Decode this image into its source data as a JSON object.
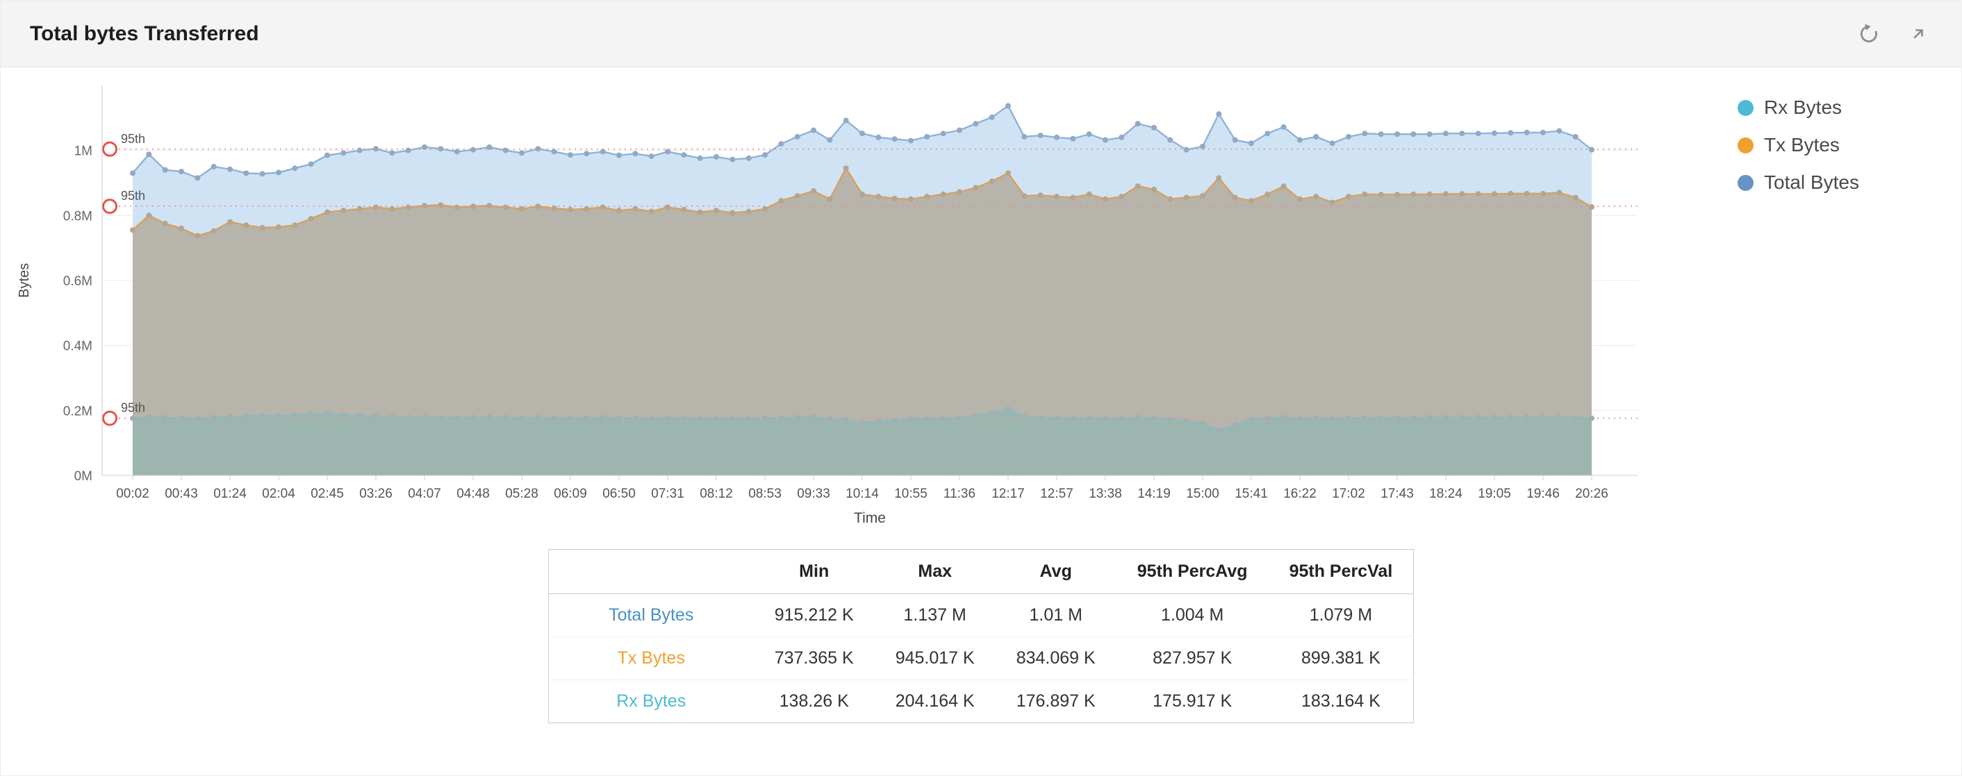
{
  "header": {
    "title": "Total bytes Transferred"
  },
  "toolbar": {
    "icons": [
      "history-icon",
      "expand-icon"
    ]
  },
  "legend": [
    {
      "label": "Rx Bytes",
      "color": "#4db9d6"
    },
    {
      "label": "Tx Bytes",
      "color": "#f0a02f"
    },
    {
      "label": "Total Bytes",
      "color": "#6593c6"
    }
  ],
  "chart_data": {
    "type": "area",
    "title": "Total bytes Transferred",
    "xlabel": "Time",
    "ylabel": "Bytes",
    "unit": "K bytes",
    "ylim_k": [
      0,
      1200
    ],
    "grid": "horizontal",
    "legend_position": "right",
    "y_ticks": [
      {
        "v": 0,
        "label": "0M"
      },
      {
        "v": 200,
        "label": "0.2M"
      },
      {
        "v": 400,
        "label": "0.4M"
      },
      {
        "v": 600,
        "label": "0.6M"
      },
      {
        "v": 800,
        "label": "0.8M"
      },
      {
        "v": 1000,
        "label": "1M"
      }
    ],
    "x_tick_labels": [
      "00:02",
      "00:43",
      "01:24",
      "02:04",
      "02:45",
      "03:26",
      "04:07",
      "04:48",
      "05:28",
      "06:09",
      "06:50",
      "07:31",
      "08:12",
      "08:53",
      "09:33",
      "10:14",
      "10:55",
      "11:36",
      "12:17",
      "12:57",
      "13:38",
      "14:19",
      "15:00",
      "15:41",
      "16:22",
      "17:02",
      "17:43",
      "18:24",
      "19:05",
      "19:46",
      "20:26"
    ],
    "points_per_tick": 3,
    "series": [
      {
        "name": "Total Bytes",
        "line": "#8fb2d8",
        "fill": "#cfe3f4",
        "dot": "#92a9c4",
        "values": [
          930,
          988,
          940,
          935,
          915.212,
          950,
          942,
          930,
          928,
          932,
          945,
          958,
          985,
          992,
          1000,
          1005,
          992,
          1000,
          1010,
          1005,
          996,
          1002,
          1010,
          1000,
          992,
          1005,
          996,
          986,
          990,
          996,
          985,
          990,
          982,
          996,
          986,
          976,
          980,
          972,
          976,
          986,
          1020,
          1042,
          1062,
          1032,
          1092,
          1052,
          1040,
          1035,
          1030,
          1042,
          1052,
          1062,
          1082,
          1102,
          1137,
          1042,
          1046,
          1040,
          1036,
          1050,
          1032,
          1040,
          1082,
          1070,
          1032,
          1002,
          1012,
          1112,
          1032,
          1022,
          1052,
          1072,
          1032,
          1042,
          1022,
          1042,
          1052,
          1050,
          1050,
          1050,
          1050,
          1052,
          1052,
          1052,
          1053,
          1054,
          1055,
          1055,
          1060,
          1042,
          1002
        ]
      },
      {
        "name": "Tx Bytes",
        "line": "#dba05c",
        "fill": "rgba(178,172,158,0.85)",
        "dot": "#b3a58f",
        "values": [
          755,
          800,
          775,
          760,
          737.365,
          752,
          780,
          770,
          762,
          764,
          770,
          790,
          810,
          815,
          820,
          825,
          820,
          825,
          830,
          832,
          825,
          828,
          830,
          825,
          820,
          828,
          822,
          818,
          820,
          825,
          815,
          820,
          812,
          825,
          818,
          810,
          815,
          808,
          812,
          820,
          845,
          860,
          875,
          850,
          945.017,
          865,
          858,
          852,
          850,
          858,
          865,
          872,
          885,
          905,
          930,
          860,
          862,
          858,
          855,
          865,
          850,
          858,
          890,
          880,
          850,
          855,
          860,
          915,
          855,
          845,
          865,
          890,
          850,
          858,
          840,
          858,
          865,
          864,
          864,
          865,
          865,
          866,
          866,
          866,
          866,
          867,
          867,
          867,
          870,
          855,
          826
        ]
      },
      {
        "name": "Rx Bytes",
        "line": "#86bcc6",
        "fill": "rgba(150,182,176,0.8)",
        "dot": "#9fb0b0",
        "values": [
          176,
          180,
          178,
          177,
          175,
          178,
          180,
          182,
          184,
          183,
          185,
          188,
          190,
          186,
          183,
          181,
          180,
          179,
          180,
          178,
          177,
          178,
          179,
          178,
          177,
          178,
          177,
          176,
          177,
          178,
          176,
          177,
          175,
          177,
          176,
          175,
          176,
          174,
          175,
          176,
          177,
          178,
          179,
          175,
          170,
          162,
          166,
          170,
          173,
          175,
          176,
          178,
          183,
          192,
          204.164,
          180,
          178,
          177,
          176,
          177,
          175,
          176,
          178,
          177,
          172,
          168,
          160,
          138.26,
          155,
          172,
          176,
          178,
          175,
          176,
          174,
          176,
          177,
          177,
          177,
          177,
          178,
          178,
          178,
          178,
          178,
          178,
          179,
          179,
          180,
          178,
          176
        ]
      }
    ],
    "percentile_lines": [
      {
        "label": "95th",
        "value_k": 1004,
        "series": "Total Bytes",
        "color": "#e4564a"
      },
      {
        "label": "95th",
        "value_k": 828,
        "series": "Tx Bytes",
        "color": "#e4564a"
      },
      {
        "label": "95th",
        "value_k": 176,
        "series": "Rx Bytes",
        "color": "#e4564a"
      }
    ]
  },
  "table": {
    "columns": [
      "",
      "Min",
      "Max",
      "Avg",
      "95th PercAvg",
      "95th PercVal"
    ],
    "rows": [
      {
        "label": "Total Bytes",
        "color": "#4a90c4",
        "values": [
          "915.212 K",
          "1.137 M",
          "1.01 M",
          "1.004 M",
          "1.079 M"
        ]
      },
      {
        "label": "Tx Bytes",
        "color": "#f0a02f",
        "values": [
          "737.365 K",
          "945.017 K",
          "834.069 K",
          "827.957 K",
          "899.381 K"
        ]
      },
      {
        "label": "Rx Bytes",
        "color": "#4db9d6",
        "values": [
          "138.26 K",
          "204.164 K",
          "176.897 K",
          "175.917 K",
          "183.164 K"
        ]
      }
    ]
  }
}
